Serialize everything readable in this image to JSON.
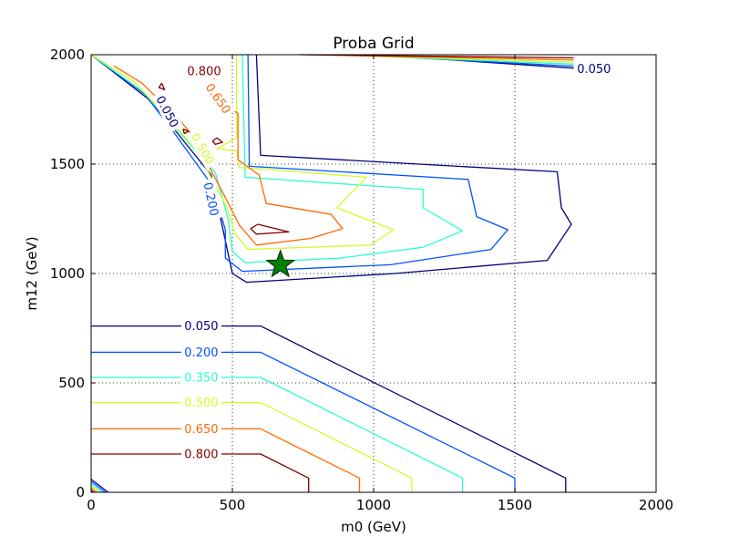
{
  "chart_data": {
    "type": "contour",
    "title": "Proba Grid",
    "xlabel": "m0 (GeV)",
    "ylabel": "m12 (GeV)",
    "xlim": [
      0,
      2000
    ],
    "ylim": [
      0,
      2000
    ],
    "grid": true,
    "x_ticks": [
      {
        "value": 0,
        "label": "0"
      },
      {
        "value": 500,
        "label": "500"
      },
      {
        "value": 1000,
        "label": "1000"
      },
      {
        "value": 1500,
        "label": "1500"
      },
      {
        "value": 2000,
        "label": "2000"
      }
    ],
    "y_ticks": [
      {
        "value": 0,
        "label": "0"
      },
      {
        "value": 500,
        "label": "500"
      },
      {
        "value": 1000,
        "label": "1000"
      },
      {
        "value": 1500,
        "label": "1500"
      },
      {
        "value": 2000,
        "label": "2000"
      }
    ],
    "levels": [
      {
        "value": 0.05,
        "label": "0.050",
        "color": "#000080"
      },
      {
        "value": 0.2,
        "label": "0.200",
        "color": "#0050ff"
      },
      {
        "value": 0.35,
        "label": "0.350",
        "color": "#29ffce"
      },
      {
        "value": 0.5,
        "label": "0.500",
        "color": "#ceff29"
      },
      {
        "value": 0.65,
        "label": "0.650",
        "color": "#ff6800"
      },
      {
        "value": 0.8,
        "label": "0.800",
        "color": "#800000"
      }
    ],
    "contours": [
      {
        "level": 0.05,
        "points": [
          [
            0,
            760
          ],
          [
            600,
            760
          ],
          [
            1680,
            65
          ],
          [
            1680,
            0
          ]
        ]
      },
      {
        "level": 0.2,
        "points": [
          [
            0,
            640
          ],
          [
            600,
            640
          ],
          [
            1500,
            65
          ],
          [
            1500,
            0
          ]
        ]
      },
      {
        "level": 0.35,
        "points": [
          [
            0,
            525
          ],
          [
            600,
            525
          ],
          [
            1315,
            65
          ],
          [
            1315,
            0
          ]
        ]
      },
      {
        "level": 0.5,
        "points": [
          [
            0,
            410
          ],
          [
            600,
            410
          ],
          [
            1135,
            65
          ],
          [
            1135,
            0
          ]
        ]
      },
      {
        "level": 0.65,
        "points": [
          [
            0,
            290
          ],
          [
            600,
            290
          ],
          [
            950,
            65
          ],
          [
            950,
            0
          ]
        ]
      },
      {
        "level": 0.8,
        "points": [
          [
            0,
            175
          ],
          [
            600,
            175
          ],
          [
            770,
            65
          ],
          [
            770,
            0
          ]
        ]
      },
      {
        "level": 0.05,
        "points": [
          [
            0,
            60
          ],
          [
            60,
            0
          ]
        ]
      },
      {
        "level": 0.2,
        "points": [
          [
            0,
            50
          ],
          [
            50,
            0
          ]
        ]
      },
      {
        "level": 0.35,
        "points": [
          [
            0,
            40
          ],
          [
            40,
            0
          ]
        ]
      },
      {
        "level": 0.5,
        "points": [
          [
            0,
            30
          ],
          [
            30,
            0
          ]
        ]
      },
      {
        "level": 0.65,
        "points": [
          [
            0,
            20
          ],
          [
            20,
            0
          ]
        ]
      },
      {
        "level": 0.8,
        "points": [
          [
            0,
            10
          ],
          [
            10,
            0
          ]
        ]
      },
      {
        "level": 0.05,
        "points": [
          [
            585,
            2000
          ],
          [
            600,
            1540
          ],
          [
            1650,
            1465
          ],
          [
            1665,
            1300
          ],
          [
            1700,
            1225
          ],
          [
            1615,
            1060
          ],
          [
            1075,
            1000
          ],
          [
            550,
            960
          ],
          [
            500,
            1000
          ],
          [
            475,
            1150
          ],
          [
            425,
            1450
          ],
          [
            300,
            1650
          ],
          [
            200,
            1800
          ],
          [
            0,
            2000
          ]
        ]
      },
      {
        "level": 0.2,
        "points": [
          [
            555,
            2000
          ],
          [
            560,
            1490
          ],
          [
            1335,
            1430
          ],
          [
            1365,
            1260
          ],
          [
            1475,
            1200
          ],
          [
            1415,
            1110
          ],
          [
            1060,
            1040
          ],
          [
            535,
            1010
          ],
          [
            475,
            1070
          ],
          [
            475,
            1200
          ],
          [
            430,
            1400
          ],
          [
            290,
            1650
          ],
          [
            190,
            1820
          ],
          [
            0,
            2000
          ]
        ]
      },
      {
        "level": 0.35,
        "points": [
          [
            535,
            2000
          ],
          [
            545,
            1440
          ],
          [
            1175,
            1385
          ],
          [
            1175,
            1300
          ],
          [
            1315,
            1195
          ],
          [
            1175,
            1120
          ],
          [
            880,
            1070
          ],
          [
            545,
            1050
          ],
          [
            500,
            1100
          ],
          [
            485,
            1250
          ],
          [
            440,
            1460
          ],
          [
            330,
            1620
          ],
          [
            185,
            1830
          ],
          [
            0,
            2000
          ]
        ]
      },
      {
        "level": 0.5,
        "points": [
          [
            515,
            2000
          ],
          [
            515,
            1620
          ],
          [
            445,
            1570
          ],
          [
            515,
            1560
          ],
          [
            525,
            1485
          ],
          [
            975,
            1440
          ],
          [
            870,
            1300
          ],
          [
            1070,
            1200
          ],
          [
            990,
            1130
          ],
          [
            555,
            1110
          ],
          [
            510,
            1180
          ],
          [
            480,
            1305
          ],
          [
            375,
            1560
          ],
          [
            280,
            1700
          ],
          [
            150,
            1880
          ],
          [
            0,
            2000
          ]
        ]
      },
      {
        "level": 0.65,
        "points": [
          [
            430,
            1950
          ],
          [
            440,
            1810
          ],
          [
            520,
            1730
          ],
          [
            520,
            1520
          ],
          [
            595,
            1450
          ],
          [
            620,
            1320
          ],
          [
            850,
            1270
          ],
          [
            890,
            1205
          ],
          [
            775,
            1160
          ],
          [
            585,
            1130
          ],
          [
            525,
            1220
          ],
          [
            470,
            1360
          ],
          [
            360,
            1630
          ],
          [
            300,
            1720
          ],
          [
            180,
            1870
          ],
          [
            80,
            1950
          ]
        ]
      },
      {
        "level": 0.8,
        "points": [
          [
            590,
            1225
          ],
          [
            700,
            1190
          ],
          [
            585,
            1180
          ],
          [
            565,
            1205
          ],
          [
            590,
            1225
          ]
        ]
      },
      {
        "level": 0.8,
        "points": [
          [
            445,
            1620
          ],
          [
            465,
            1600
          ],
          [
            440,
            1590
          ],
          [
            430,
            1605
          ],
          [
            445,
            1620
          ]
        ]
      },
      {
        "level": 0.8,
        "points": [
          [
            325,
            1660
          ],
          [
            345,
            1650
          ],
          [
            330,
            1640
          ],
          [
            325,
            1660
          ]
        ]
      },
      {
        "level": 0.8,
        "points": [
          [
            250,
            1870
          ],
          [
            260,
            1840
          ],
          [
            240,
            1850
          ],
          [
            250,
            1870
          ]
        ]
      },
      {
        "level": 0.05,
        "points": [
          [
            1000,
            2000
          ],
          [
            1750,
            1935
          ]
        ]
      },
      {
        "level": 0.2,
        "points": [
          [
            920,
            2000
          ],
          [
            1750,
            1945
          ]
        ]
      },
      {
        "level": 0.35,
        "points": [
          [
            860,
            2000
          ],
          [
            1750,
            1955
          ]
        ]
      },
      {
        "level": 0.5,
        "points": [
          [
            810,
            2000
          ],
          [
            1750,
            1965
          ]
        ]
      },
      {
        "level": 0.65,
        "points": [
          [
            770,
            2000
          ],
          [
            1750,
            1975
          ]
        ]
      },
      {
        "level": 0.8,
        "points": [
          [
            740,
            2000
          ],
          [
            1750,
            1985
          ]
        ]
      }
    ],
    "contour_labels": [
      {
        "label": "0.050",
        "level": 0.05,
        "x": 390,
        "y": 760,
        "rotation": 0
      },
      {
        "label": "0.200",
        "level": 0.2,
        "x": 390,
        "y": 640,
        "rotation": 0
      },
      {
        "label": "0.350",
        "level": 0.35,
        "x": 390,
        "y": 525,
        "rotation": 0
      },
      {
        "label": "0.500",
        "level": 0.5,
        "x": 390,
        "y": 410,
        "rotation": 0
      },
      {
        "label": "0.650",
        "level": 0.65,
        "x": 390,
        "y": 290,
        "rotation": 0
      },
      {
        "label": "0.800",
        "level": 0.8,
        "x": 390,
        "y": 175,
        "rotation": 0
      },
      {
        "label": "0.800",
        "level": 0.8,
        "x": 400,
        "y": 1925,
        "rotation": 0
      },
      {
        "label": "0.650",
        "level": 0.65,
        "x": 450,
        "y": 1800,
        "rotation": 55
      },
      {
        "label": "0.050",
        "level": 0.05,
        "x": 270,
        "y": 1740,
        "rotation": 62
      },
      {
        "label": "0.200",
        "level": 0.2,
        "x": 425,
        "y": 1340,
        "rotation": 78
      },
      {
        "label": "0.500",
        "level": 0.5,
        "x": 395,
        "y": 1570,
        "rotation": 60
      },
      {
        "label": "0.800",
        "level": 0.8,
        "x": 1780,
        "y": 1985,
        "rotation": 0
      },
      {
        "label": "0.650",
        "level": 0.65,
        "x": 1780,
        "y": 1975,
        "rotation": 0
      },
      {
        "label": "0.500",
        "level": 0.5,
        "x": 1780,
        "y": 1965,
        "rotation": 0
      },
      {
        "label": "0.350",
        "level": 0.35,
        "x": 1780,
        "y": 1955,
        "rotation": 0
      },
      {
        "label": "0.200",
        "level": 0.2,
        "x": 1780,
        "y": 1945,
        "rotation": 0
      },
      {
        "label": "0.050",
        "level": 0.05,
        "x": 1780,
        "y": 1935,
        "rotation": 0
      }
    ],
    "marker": {
      "shape": "star",
      "x": 670,
      "y": 1040,
      "color": "#008000"
    }
  }
}
